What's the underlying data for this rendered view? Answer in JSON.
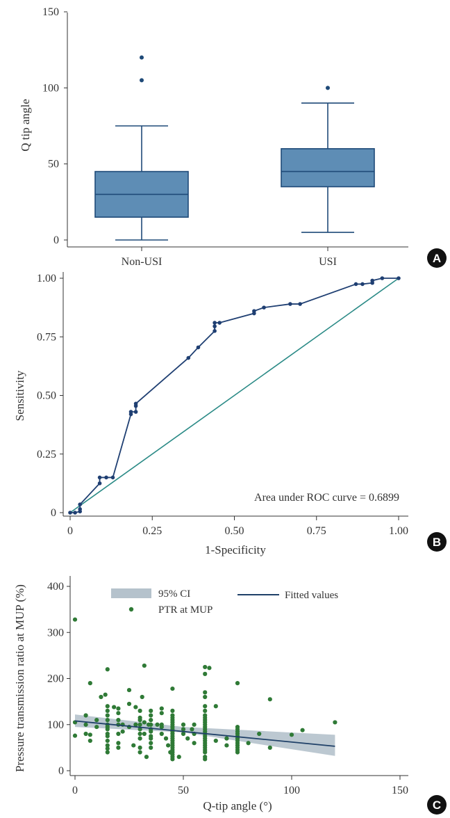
{
  "colors": {
    "box_fill": "#5e8db5",
    "box_stroke": "#1f4a78",
    "roc_line": "#1f3f72",
    "diagonal": "#2a8a86",
    "scatter_point": "#2f7a36",
    "ci_band": "#b5c2cc",
    "fitted_line": "#1f4068",
    "badge": "#111111"
  },
  "panels": {
    "a": {
      "label": "A"
    },
    "b": {
      "label": "B"
    },
    "c": {
      "label": "C"
    }
  },
  "chart_data": [
    {
      "type": "box",
      "ylabel": "Q tip angle",
      "ylim": [
        0,
        150
      ],
      "yticks": [
        0,
        50,
        100,
        150
      ],
      "categories": [
        "Non-USI",
        "USI"
      ],
      "boxes": [
        {
          "category": "Non-USI",
          "whisker_low": 0,
          "q1": 15,
          "median": 30,
          "q3": 45,
          "whisker_high": 75,
          "outliers": [
            105,
            120
          ]
        },
        {
          "category": "USI",
          "whisker_low": 5,
          "q1": 35,
          "median": 45,
          "q3": 60,
          "whisker_high": 90,
          "outliers": [
            100
          ]
        }
      ]
    },
    {
      "type": "line",
      "xlabel": "1-Specificity",
      "ylabel": "Sensitivity",
      "xlim": [
        0,
        1
      ],
      "ylim": [
        0,
        1
      ],
      "xticks": [
        "0",
        "0.25",
        "0.50",
        "0.75",
        "1.00"
      ],
      "yticks": [
        "0",
        "0.25",
        "0.50",
        "0.75",
        "1.00"
      ],
      "annotation": "Area under ROC curve = 0.6899",
      "roc_points": [
        [
          0,
          0
        ],
        [
          0.015,
          0
        ],
        [
          0.03,
          0.005
        ],
        [
          0.03,
          0.015
        ],
        [
          0.03,
          0.035
        ],
        [
          0.09,
          0.125
        ],
        [
          0.09,
          0.15
        ],
        [
          0.11,
          0.15
        ],
        [
          0.13,
          0.15
        ],
        [
          0.185,
          0.42
        ],
        [
          0.185,
          0.43
        ],
        [
          0.2,
          0.43
        ],
        [
          0.2,
          0.455
        ],
        [
          0.2,
          0.465
        ],
        [
          0.36,
          0.66
        ],
        [
          0.39,
          0.705
        ],
        [
          0.44,
          0.775
        ],
        [
          0.44,
          0.795
        ],
        [
          0.44,
          0.81
        ],
        [
          0.455,
          0.81
        ],
        [
          0.56,
          0.85
        ],
        [
          0.56,
          0.86
        ],
        [
          0.59,
          0.875
        ],
        [
          0.67,
          0.89
        ],
        [
          0.7,
          0.89
        ],
        [
          0.87,
          0.975
        ],
        [
          0.89,
          0.975
        ],
        [
          0.92,
          0.98
        ],
        [
          0.92,
          0.99
        ],
        [
          0.95,
          1.0
        ],
        [
          1.0,
          1.0
        ]
      ],
      "reference_line": [
        [
          0,
          0
        ],
        [
          1,
          1
        ]
      ]
    },
    {
      "type": "scatter",
      "xlabel": "Q-tip angle (°)",
      "ylabel": "Pressure transmission ratio at MUP (%)",
      "xlim": [
        0,
        150
      ],
      "ylim": [
        0,
        400
      ],
      "xticks": [
        0,
        50,
        100,
        150
      ],
      "yticks": [
        0,
        100,
        200,
        300,
        400
      ],
      "legend": {
        "ci": "95% CI",
        "points": "PTR at MUP",
        "fit": "Fitted values",
        "placement": "top"
      },
      "fit": {
        "x": [
          0,
          120
        ],
        "y": [
          108,
          53
        ]
      },
      "ci_band": {
        "x": [
          0,
          50,
          120
        ],
        "lower": [
          95,
          83,
          32
        ],
        "upper": [
          122,
          95,
          78
        ]
      },
      "points": [
        [
          0,
          328
        ],
        [
          0,
          76
        ],
        [
          0,
          105
        ],
        [
          5,
          120
        ],
        [
          5,
          100
        ],
        [
          5,
          80
        ],
        [
          7,
          190
        ],
        [
          7,
          78
        ],
        [
          7,
          65
        ],
        [
          10,
          110
        ],
        [
          10,
          95
        ],
        [
          12,
          160
        ],
        [
          14,
          165
        ],
        [
          15,
          220
        ],
        [
          15,
          140
        ],
        [
          15,
          130
        ],
        [
          15,
          120
        ],
        [
          15,
          110
        ],
        [
          15,
          100
        ],
        [
          15,
          95
        ],
        [
          15,
          90
        ],
        [
          15,
          80
        ],
        [
          15,
          75
        ],
        [
          15,
          65
        ],
        [
          15,
          55
        ],
        [
          15,
          48
        ],
        [
          15,
          40
        ],
        [
          18,
          138
        ],
        [
          20,
          135
        ],
        [
          20,
          125
        ],
        [
          20,
          110
        ],
        [
          20,
          100
        ],
        [
          20,
          80
        ],
        [
          20,
          60
        ],
        [
          20,
          50
        ],
        [
          22,
          100
        ],
        [
          22,
          85
        ],
        [
          25,
          175
        ],
        [
          25,
          145
        ],
        [
          25,
          95
        ],
        [
          27,
          55
        ],
        [
          28,
          138
        ],
        [
          28,
          100
        ],
        [
          30,
          130
        ],
        [
          30,
          115
        ],
        [
          30,
          110
        ],
        [
          30,
          100
        ],
        [
          30,
          90
        ],
        [
          30,
          80
        ],
        [
          30,
          70
        ],
        [
          30,
          50
        ],
        [
          30,
          40
        ],
        [
          31,
          160
        ],
        [
          32,
          228
        ],
        [
          32,
          105
        ],
        [
          32,
          80
        ],
        [
          33,
          30
        ],
        [
          34,
          100
        ],
        [
          35,
          130
        ],
        [
          35,
          120
        ],
        [
          35,
          110
        ],
        [
          35,
          100
        ],
        [
          35,
          90
        ],
        [
          35,
          85
        ],
        [
          35,
          75
        ],
        [
          35,
          70
        ],
        [
          35,
          60
        ],
        [
          35,
          50
        ],
        [
          38,
          100
        ],
        [
          40,
          135
        ],
        [
          40,
          125
        ],
        [
          40,
          100
        ],
        [
          40,
          95
        ],
        [
          40,
          80
        ],
        [
          42,
          70
        ],
        [
          43,
          55
        ],
        [
          44,
          40
        ],
        [
          45,
          178
        ],
        [
          45,
          130
        ],
        [
          45,
          120
        ],
        [
          45,
          115
        ],
        [
          45,
          110
        ],
        [
          45,
          105
        ],
        [
          45,
          100
        ],
        [
          45,
          95
        ],
        [
          45,
          90
        ],
        [
          45,
          85
        ],
        [
          45,
          80
        ],
        [
          45,
          75
        ],
        [
          45,
          70
        ],
        [
          45,
          65
        ],
        [
          45,
          60
        ],
        [
          45,
          55
        ],
        [
          45,
          50
        ],
        [
          45,
          45
        ],
        [
          45,
          40
        ],
        [
          45,
          35
        ],
        [
          45,
          30
        ],
        [
          45,
          25
        ],
        [
          48,
          30
        ],
        [
          50,
          100
        ],
        [
          50,
          90
        ],
        [
          50,
          80
        ],
        [
          52,
          70
        ],
        [
          54,
          90
        ],
        [
          55,
          100
        ],
        [
          55,
          80
        ],
        [
          55,
          60
        ],
        [
          60,
          225
        ],
        [
          60,
          210
        ],
        [
          60,
          170
        ],
        [
          60,
          160
        ],
        [
          60,
          140
        ],
        [
          60,
          130
        ],
        [
          60,
          120
        ],
        [
          60,
          115
        ],
        [
          60,
          110
        ],
        [
          60,
          105
        ],
        [
          60,
          100
        ],
        [
          60,
          95
        ],
        [
          60,
          90
        ],
        [
          60,
          85
        ],
        [
          60,
          80
        ],
        [
          60,
          75
        ],
        [
          60,
          70
        ],
        [
          60,
          65
        ],
        [
          60,
          60
        ],
        [
          60,
          55
        ],
        [
          60,
          50
        ],
        [
          60,
          45
        ],
        [
          60,
          40
        ],
        [
          60,
          30
        ],
        [
          60,
          25
        ],
        [
          62,
          223
        ],
        [
          65,
          140
        ],
        [
          65,
          65
        ],
        [
          70,
          70
        ],
        [
          70,
          55
        ],
        [
          75,
          190
        ],
        [
          75,
          95
        ],
        [
          75,
          90
        ],
        [
          75,
          85
        ],
        [
          75,
          80
        ],
        [
          75,
          75
        ],
        [
          75,
          70
        ],
        [
          75,
          65
        ],
        [
          75,
          60
        ],
        [
          75,
          55
        ],
        [
          75,
          50
        ],
        [
          75,
          45
        ],
        [
          75,
          40
        ],
        [
          80,
          60
        ],
        [
          85,
          80
        ],
        [
          90,
          155
        ],
        [
          90,
          50
        ],
        [
          100,
          78
        ],
        [
          105,
          88
        ],
        [
          120,
          105
        ]
      ]
    }
  ]
}
